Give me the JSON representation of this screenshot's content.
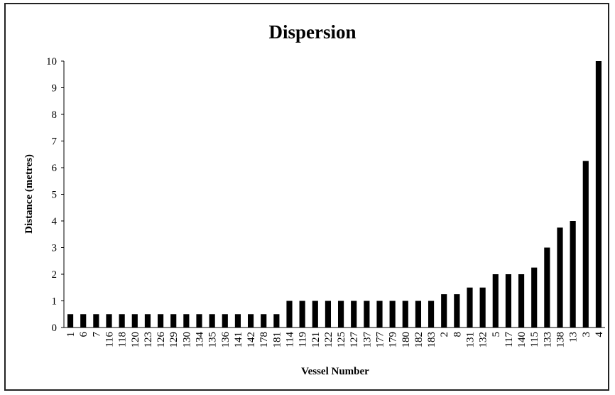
{
  "chart_data": {
    "type": "bar",
    "title": "Dispersion",
    "xlabel": "Vessel Number",
    "ylabel": "Distance (metres)",
    "ylim": [
      0,
      10
    ],
    "yticks": [
      "0",
      "1",
      "2",
      "3",
      "4",
      "5",
      "6",
      "7",
      "8",
      "9",
      "10"
    ],
    "grid": false,
    "legend": "none",
    "bar_color": "#000000",
    "categories": [
      "1",
      "6",
      "7",
      "116",
      "118",
      "120",
      "123",
      "126",
      "129",
      "130",
      "134",
      "135",
      "136",
      "141",
      "142",
      "178",
      "181",
      "114",
      "119",
      "121",
      "122",
      "125",
      "127",
      "137",
      "177",
      "179",
      "180",
      "182",
      "183",
      "2",
      "8",
      "131",
      "132",
      "5",
      "117",
      "140",
      "115",
      "133",
      "138",
      "13",
      "3",
      "4"
    ],
    "values": [
      0.5,
      0.5,
      0.5,
      0.5,
      0.5,
      0.5,
      0.5,
      0.5,
      0.5,
      0.5,
      0.5,
      0.5,
      0.5,
      0.5,
      0.5,
      0.5,
      0.5,
      1,
      1,
      1,
      1,
      1,
      1,
      1,
      1,
      1,
      1,
      1,
      1,
      1.25,
      1.25,
      1.5,
      1.5,
      2,
      2,
      2,
      2.25,
      3,
      3.75,
      4,
      6.25,
      10
    ]
  }
}
